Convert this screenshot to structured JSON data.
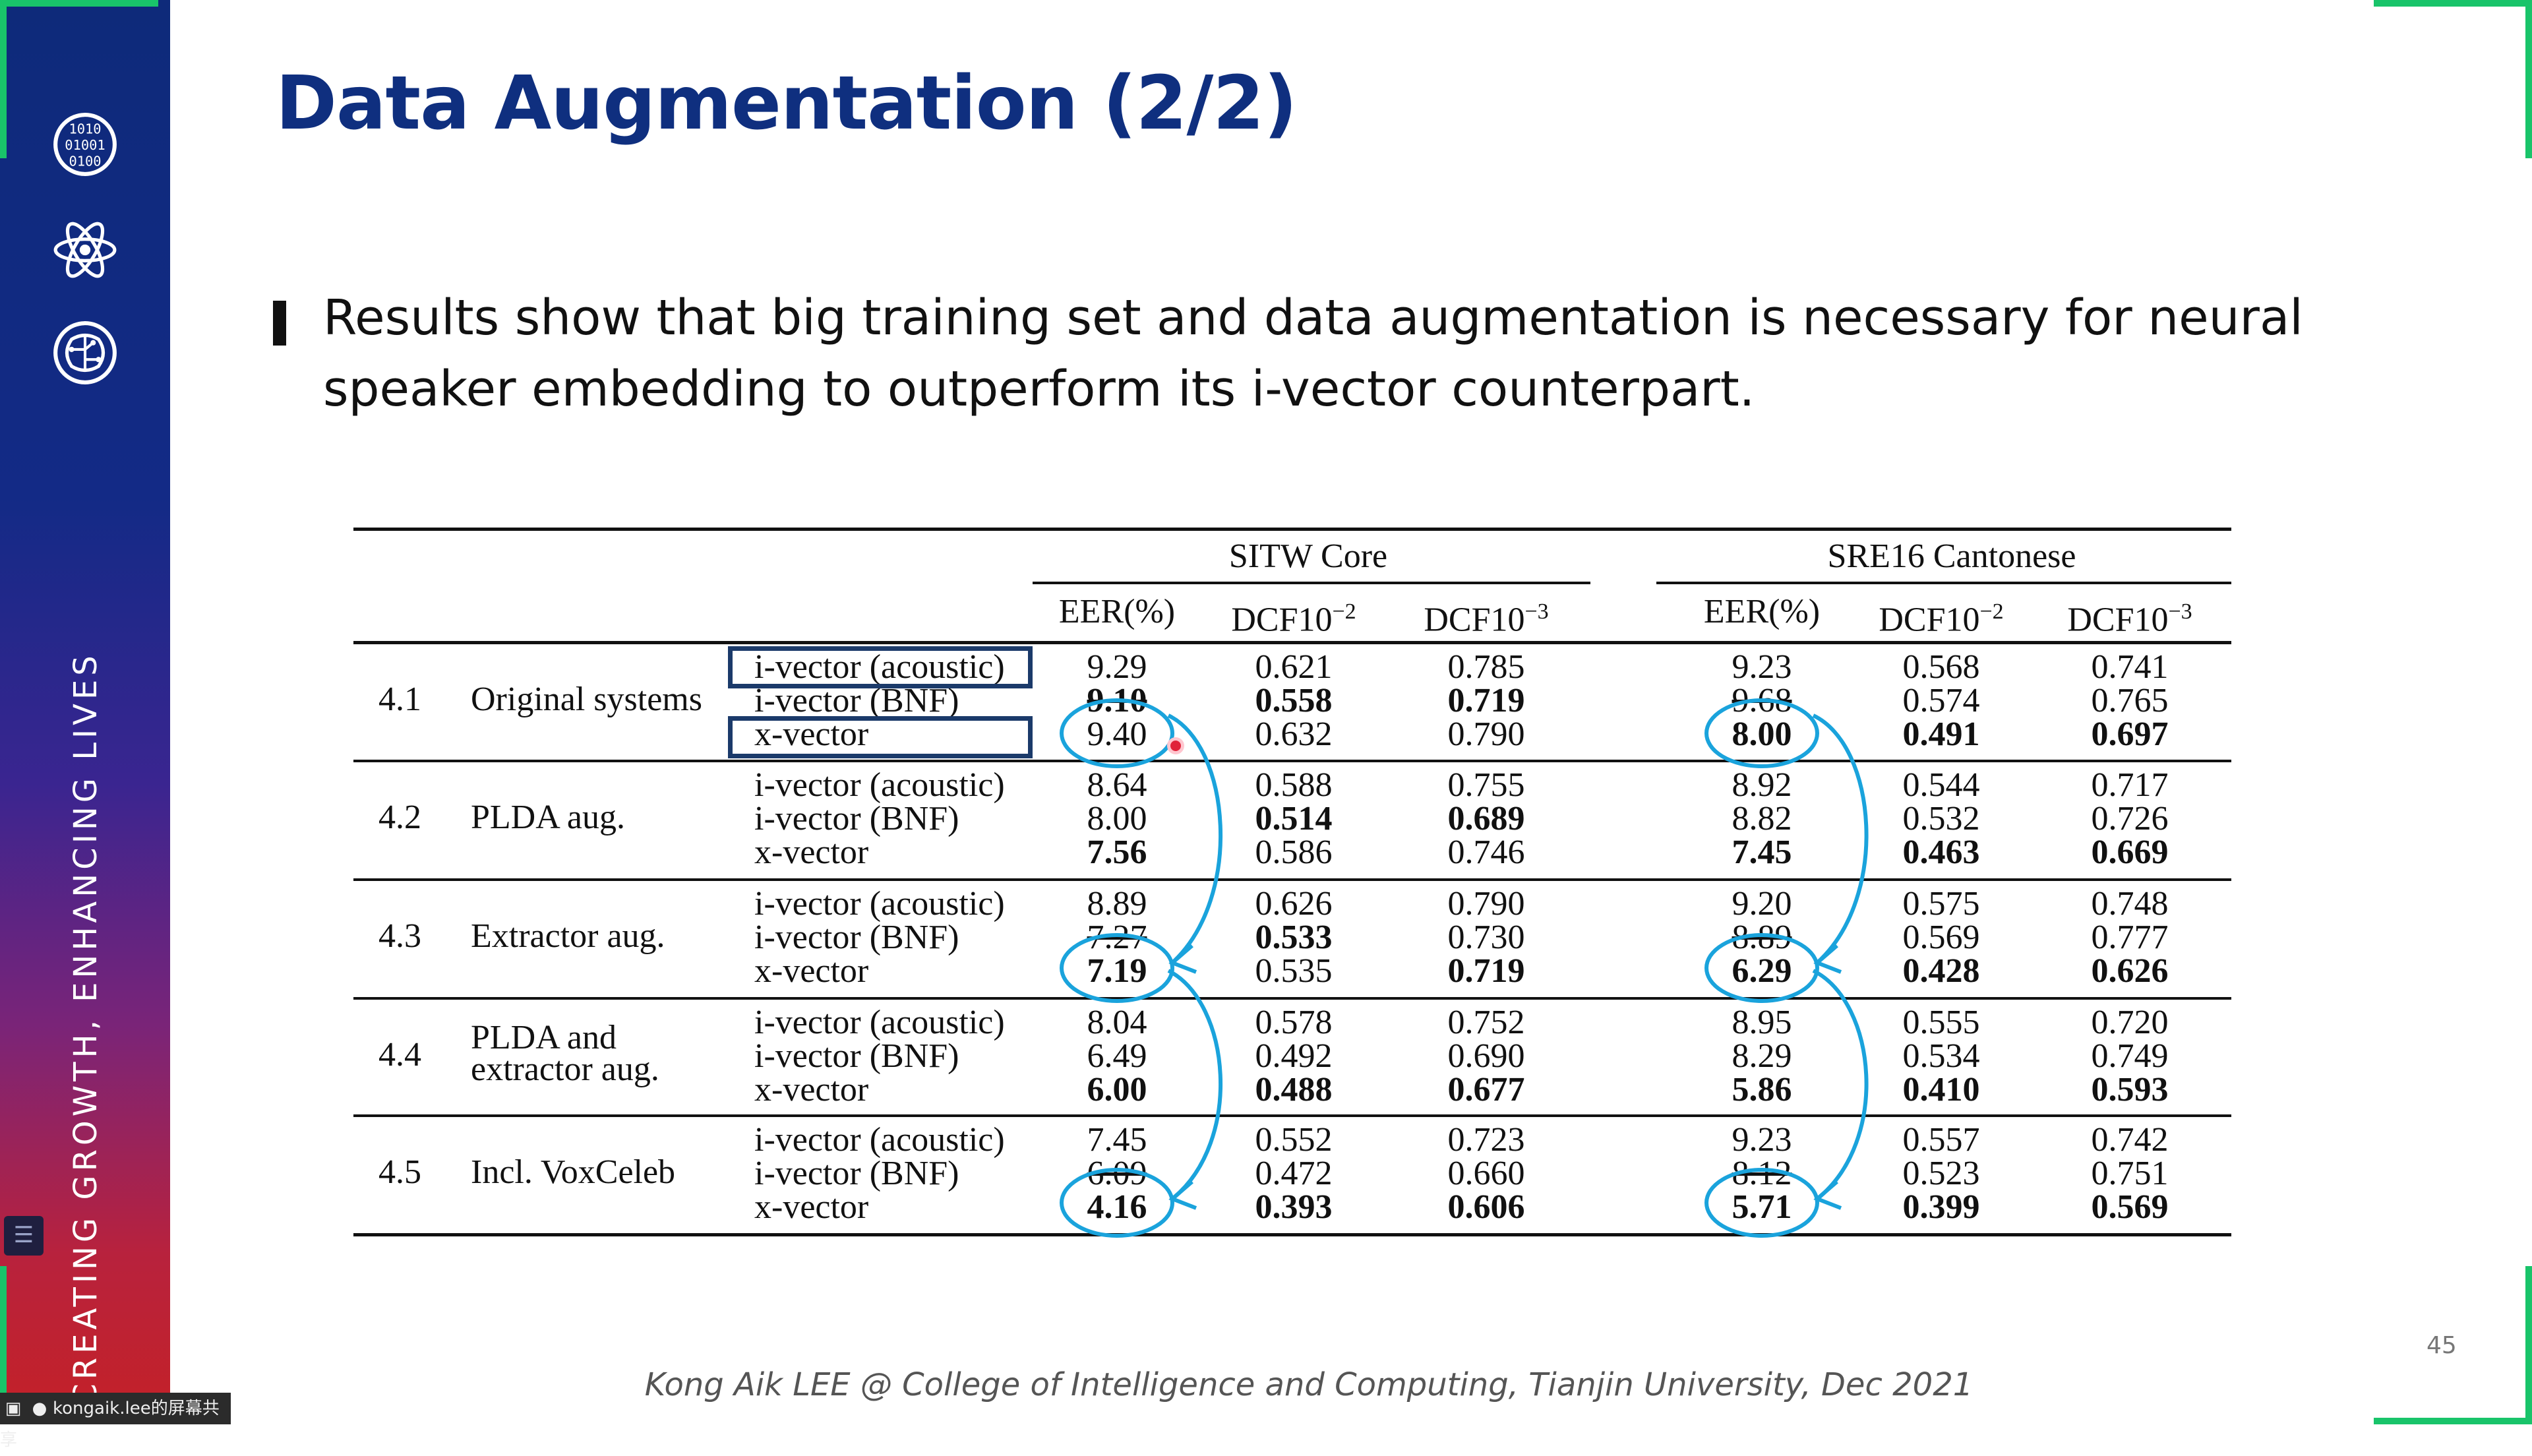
{
  "slide": {
    "title": "Data Augmentation (2/2)",
    "bullet": "Results show that big training set and data augmentation is necessary for neural speaker embedding to outperform its i-vector counterpart.",
    "sidebar_tagline": "CREATING GROWTH, ENHANCING LIVES",
    "sidebar_icons": [
      "binary-code-icon",
      "atom-icon",
      "brain-circuit-icon"
    ],
    "footer": "Kong Aik LEE @ College of Intelligence and Computing, Tianjin University, Dec 2021",
    "page_number": "45"
  },
  "table": {
    "groups": [
      "SITW Core",
      "SRE16 Cantonese"
    ],
    "metric_headers": [
      "EER(%)",
      "DCF10",
      "DCF10"
    ],
    "metric_exponents": [
      "",
      "−2",
      "−3"
    ],
    "sections": [
      {
        "num": "4.1",
        "label": [
          "Original systems"
        ],
        "rows": [
          {
            "system": "i-vector (acoustic)",
            "sitw": [
              "9.29",
              "0.621",
              "0.785"
            ],
            "sre": [
              "9.23",
              "0.568",
              "0.741"
            ]
          },
          {
            "system": "i-vector (BNF)",
            "sitw": [
              "9.10",
              "0.558",
              "0.719"
            ],
            "sre": [
              "9.68",
              "0.574",
              "0.765"
            ]
          },
          {
            "system": "x-vector",
            "sitw": [
              "9.40",
              "0.632",
              "0.790"
            ],
            "sre": [
              "8.00",
              "0.491",
              "0.697"
            ]
          }
        ]
      },
      {
        "num": "4.2",
        "label": [
          "PLDA aug."
        ],
        "rows": [
          {
            "system": "i-vector (acoustic)",
            "sitw": [
              "8.64",
              "0.588",
              "0.755"
            ],
            "sre": [
              "8.92",
              "0.544",
              "0.717"
            ]
          },
          {
            "system": "i-vector (BNF)",
            "sitw": [
              "8.00",
              "0.514",
              "0.689"
            ],
            "sre": [
              "8.82",
              "0.532",
              "0.726"
            ]
          },
          {
            "system": "x-vector",
            "sitw": [
              "7.56",
              "0.586",
              "0.746"
            ],
            "sre": [
              "7.45",
              "0.463",
              "0.669"
            ]
          }
        ]
      },
      {
        "num": "4.3",
        "label": [
          "Extractor aug."
        ],
        "rows": [
          {
            "system": "i-vector (acoustic)",
            "sitw": [
              "8.89",
              "0.626",
              "0.790"
            ],
            "sre": [
              "9.20",
              "0.575",
              "0.748"
            ]
          },
          {
            "system": "i-vector (BNF)",
            "sitw": [
              "7.27",
              "0.533",
              "0.730"
            ],
            "sre": [
              "8.89",
              "0.569",
              "0.777"
            ]
          },
          {
            "system": "x-vector",
            "sitw": [
              "7.19",
              "0.535",
              "0.719"
            ],
            "sre": [
              "6.29",
              "0.428",
              "0.626"
            ]
          }
        ]
      },
      {
        "num": "4.4",
        "label": [
          "PLDA and",
          "extractor aug."
        ],
        "rows": [
          {
            "system": "i-vector (acoustic)",
            "sitw": [
              "8.04",
              "0.578",
              "0.752"
            ],
            "sre": [
              "8.95",
              "0.555",
              "0.720"
            ]
          },
          {
            "system": "i-vector (BNF)",
            "sitw": [
              "6.49",
              "0.492",
              "0.690"
            ],
            "sre": [
              "8.29",
              "0.534",
              "0.749"
            ]
          },
          {
            "system": "x-vector",
            "sitw": [
              "6.00",
              "0.488",
              "0.677"
            ],
            "sre": [
              "5.86",
              "0.410",
              "0.593"
            ]
          }
        ]
      },
      {
        "num": "4.5",
        "label": [
          "Incl. VoxCeleb"
        ],
        "rows": [
          {
            "system": "i-vector (acoustic)",
            "sitw": [
              "7.45",
              "0.552",
              "0.723"
            ],
            "sre": [
              "9.23",
              "0.557",
              "0.742"
            ]
          },
          {
            "system": "i-vector (BNF)",
            "sitw": [
              "6.09",
              "0.472",
              "0.660"
            ],
            "sre": [
              "8.12",
              "0.523",
              "0.751"
            ]
          },
          {
            "system": "x-vector",
            "sitw": [
              "4.16",
              "0.393",
              "0.606"
            ],
            "sre": [
              "5.71",
              "0.399",
              "0.569"
            ]
          }
        ]
      }
    ],
    "bold_cells": [
      "0.1.sitw.0",
      "0.1.sitw.1",
      "0.1.sitw.2",
      "0.2.sre.0",
      "0.2.sre.1",
      "0.2.sre.2",
      "1.2.sitw.0",
      "1.1.sitw.1",
      "1.1.sitw.2",
      "1.2.sre.0",
      "1.2.sre.1",
      "1.2.sre.2",
      "2.2.sitw.0",
      "2.1.sitw.1",
      "2.2.sitw.2",
      "2.2.sre.0",
      "2.2.sre.1",
      "2.2.sre.2",
      "3.2.sitw.0",
      "3.2.sitw.1",
      "3.2.sitw.2",
      "3.2.sre.0",
      "3.2.sre.1",
      "3.2.sre.2",
      "4.2.sitw.0",
      "4.2.sitw.1",
      "4.2.sitw.2",
      "4.2.sre.0",
      "4.2.sre.1",
      "4.2.sre.2"
    ],
    "strikethrough_cells": [
      "0.1.sitw.0",
      "0.1.sre.0",
      "2.1.sitw.0",
      "2.1.sre.0",
      "4.1.sitw.0",
      "4.1.sre.0"
    ],
    "annotation_color": "#1aa3dc"
  },
  "screen_share": {
    "label": "kongaik.lee的屏幕共享"
  },
  "colors": {
    "title": "#0f2f7f",
    "corner_accent": "#19c46a",
    "box_outline": "#1b3a6a"
  }
}
